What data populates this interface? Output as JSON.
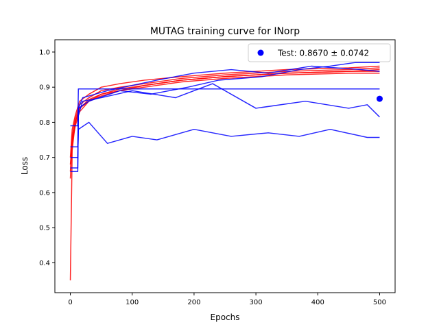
{
  "chart_data": {
    "type": "line",
    "title": "MUTAG training curve for INorp",
    "xlabel": "Epochs",
    "ylabel": "Loss",
    "xlim": [
      -25,
      525
    ],
    "ylim": [
      0.315,
      1.035
    ],
    "xticks": [
      0,
      100,
      200,
      300,
      400,
      500
    ],
    "yticks": [
      0.4,
      0.5,
      0.6,
      0.7,
      0.8,
      0.9,
      1.0
    ],
    "xtick_labels": [
      "0",
      "100",
      "200",
      "300",
      "400",
      "500"
    ],
    "ytick_labels": [
      "0.4",
      "0.5",
      "0.6",
      "0.7",
      "0.8",
      "0.9",
      "1.0"
    ],
    "grid": false,
    "legend_position": "upper right",
    "legend": [
      {
        "label": "Test: 0.8670 ± 0.0742",
        "color": "#0000ff",
        "marker": "circle"
      }
    ],
    "test_point": {
      "x": 500,
      "y": 0.867,
      "color": "#0000ff"
    },
    "colors": {
      "train": "#ff0000",
      "validation": "#0000ff"
    },
    "series": [
      {
        "kind": "train",
        "color": "#ff0000",
        "x": [
          0,
          3,
          8,
          15,
          30,
          50,
          80,
          120,
          180,
          250,
          350,
          450,
          500
        ],
        "y": [
          0.35,
          0.72,
          0.8,
          0.84,
          0.86,
          0.88,
          0.89,
          0.905,
          0.92,
          0.93,
          0.94,
          0.945,
          0.95
        ]
      },
      {
        "kind": "train",
        "color": "#ff0000",
        "x": [
          0,
          3,
          8,
          15,
          30,
          50,
          80,
          120,
          180,
          250,
          350,
          450,
          500
        ],
        "y": [
          0.64,
          0.76,
          0.81,
          0.85,
          0.87,
          0.89,
          0.9,
          0.91,
          0.925,
          0.935,
          0.945,
          0.95,
          0.955
        ]
      },
      {
        "kind": "train",
        "color": "#ff0000",
        "x": [
          0,
          3,
          8,
          15,
          30,
          50,
          80,
          120,
          180,
          250,
          350,
          450,
          500
        ],
        "y": [
          0.66,
          0.74,
          0.79,
          0.83,
          0.86,
          0.875,
          0.89,
          0.9,
          0.915,
          0.925,
          0.935,
          0.94,
          0.94
        ]
      },
      {
        "kind": "train",
        "color": "#ff0000",
        "x": [
          0,
          3,
          8,
          15,
          30,
          50,
          80,
          120,
          180,
          250,
          350,
          450,
          500
        ],
        "y": [
          0.7,
          0.78,
          0.82,
          0.86,
          0.88,
          0.9,
          0.91,
          0.92,
          0.93,
          0.94,
          0.95,
          0.955,
          0.96
        ]
      },
      {
        "kind": "train",
        "color": "#ff0000",
        "x": [
          0,
          3,
          8,
          15,
          30,
          50,
          80,
          120,
          180,
          250,
          350,
          450,
          500
        ],
        "y": [
          0.68,
          0.75,
          0.8,
          0.84,
          0.865,
          0.88,
          0.895,
          0.905,
          0.92,
          0.93,
          0.94,
          0.945,
          0.945
        ]
      },
      {
        "kind": "validation",
        "color": "#0000ff",
        "x": [
          0,
          12,
          13,
          500
        ],
        "y": [
          0.79,
          0.79,
          0.895,
          0.895
        ]
      },
      {
        "kind": "validation",
        "color": "#0000ff",
        "x": [
          0,
          12,
          13,
          20,
          60,
          140,
          200,
          260,
          320,
          390,
          470,
          500
        ],
        "y": [
          0.66,
          0.66,
          0.84,
          0.87,
          0.89,
          0.92,
          0.94,
          0.95,
          0.94,
          0.96,
          0.95,
          0.945
        ]
      },
      {
        "kind": "validation",
        "color": "#0000ff",
        "x": [
          0,
          12,
          13,
          20,
          50,
          100,
          170,
          230,
          300,
          380,
          450,
          480,
          500
        ],
        "y": [
          0.67,
          0.67,
          0.82,
          0.86,
          0.87,
          0.89,
          0.87,
          0.91,
          0.84,
          0.86,
          0.84,
          0.85,
          0.815
        ]
      },
      {
        "kind": "validation",
        "color": "#0000ff",
        "x": [
          0,
          12,
          13,
          30,
          80,
          130,
          190,
          240,
          310,
          370,
          420,
          460,
          500
        ],
        "y": [
          0.73,
          0.73,
          0.84,
          0.86,
          0.89,
          0.88,
          0.9,
          0.92,
          0.93,
          0.95,
          0.96,
          0.97,
          0.97
        ]
      },
      {
        "kind": "validation",
        "color": "#0000ff",
        "x": [
          0,
          12,
          13,
          30,
          60,
          100,
          140,
          200,
          260,
          320,
          370,
          420,
          480,
          500
        ],
        "y": [
          0.7,
          0.7,
          0.78,
          0.8,
          0.74,
          0.76,
          0.75,
          0.78,
          0.76,
          0.77,
          0.76,
          0.78,
          0.757,
          0.757
        ]
      }
    ]
  }
}
